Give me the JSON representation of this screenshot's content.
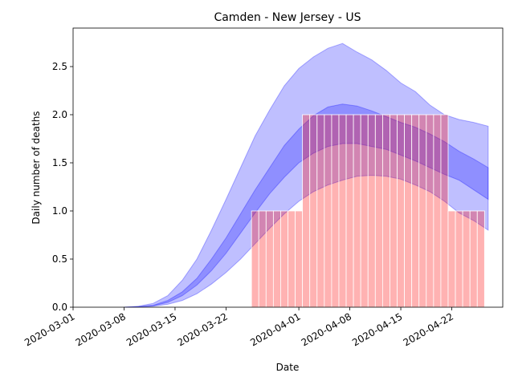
{
  "chart_data": {
    "type": "bar",
    "title": "Camden - New Jersey - US",
    "xlabel": "Date",
    "ylabel": "Daily number of deaths",
    "x": [
      "2020-03-26",
      "2020-03-27",
      "2020-03-28",
      "2020-03-29",
      "2020-03-30",
      "2020-03-31",
      "2020-04-01",
      "2020-04-02",
      "2020-04-03",
      "2020-04-04",
      "2020-04-05",
      "2020-04-06",
      "2020-04-07",
      "2020-04-08",
      "2020-04-09",
      "2020-04-10",
      "2020-04-11",
      "2020-04-12",
      "2020-04-13",
      "2020-04-14",
      "2020-04-15",
      "2020-04-16",
      "2020-04-17",
      "2020-04-18",
      "2020-04-19",
      "2020-04-20",
      "2020-04-21",
      "2020-04-22",
      "2020-04-23",
      "2020-04-24",
      "2020-04-25",
      "2020-04-26"
    ],
    "values": [
      1,
      1,
      1,
      1,
      1,
      1,
      1,
      2,
      2,
      2,
      2,
      2,
      2,
      2,
      2,
      2,
      2,
      2,
      2,
      2,
      2,
      2,
      2,
      2,
      2,
      2,
      2,
      1,
      1,
      1,
      1,
      1
    ],
    "color": "#ff0000",
    "band_x": [
      "2020-03-08",
      "2020-03-10",
      "2020-03-12",
      "2020-03-14",
      "2020-03-16",
      "2020-03-18",
      "2020-03-20",
      "2020-03-22",
      "2020-03-24",
      "2020-03-26",
      "2020-03-28",
      "2020-03-30",
      "2020-04-01",
      "2020-04-03",
      "2020-04-05",
      "2020-04-07",
      "2020-04-09",
      "2020-04-11",
      "2020-04-13",
      "2020-04-15",
      "2020-04-17",
      "2020-04-19",
      "2020-04-21",
      "2020-04-23",
      "2020-04-25",
      "2020-04-27"
    ],
    "bands": [
      {
        "color": "#0000ff",
        "upper": [
          0,
          0.01,
          0.04,
          0.12,
          0.28,
          0.5,
          0.8,
          1.12,
          1.45,
          1.78,
          2.05,
          2.3,
          2.48,
          2.6,
          2.69,
          2.74,
          2.65,
          2.57,
          2.46,
          2.33,
          2.24,
          2.1,
          2.0,
          1.95,
          1.92,
          1.88
        ],
        "lower": [
          0,
          0.002,
          0.01,
          0.03,
          0.07,
          0.14,
          0.24,
          0.36,
          0.5,
          0.66,
          0.82,
          0.97,
          1.1,
          1.2,
          1.27,
          1.32,
          1.36,
          1.37,
          1.36,
          1.33,
          1.27,
          1.2,
          1.1,
          0.98,
          0.9,
          0.8
        ]
      },
      {
        "color": "#0000ff",
        "upper": [
          0,
          0.005,
          0.02,
          0.07,
          0.16,
          0.3,
          0.5,
          0.72,
          0.97,
          1.22,
          1.45,
          1.68,
          1.85,
          1.99,
          2.08,
          2.11,
          2.09,
          2.04,
          1.98,
          1.92,
          1.87,
          1.8,
          1.72,
          1.62,
          1.54,
          1.45
        ],
        "lower": [
          0,
          0.004,
          0.015,
          0.05,
          0.12,
          0.23,
          0.38,
          0.56,
          0.77,
          0.98,
          1.18,
          1.35,
          1.5,
          1.6,
          1.67,
          1.7,
          1.7,
          1.67,
          1.64,
          1.58,
          1.52,
          1.45,
          1.38,
          1.32,
          1.22,
          1.12
        ]
      }
    ],
    "xlim": [
      "2020-03-01",
      "2020-04-29"
    ],
    "xticks": [
      "2020-03-01",
      "2020-03-08",
      "2020-03-15",
      "2020-03-22",
      "2020-04-01",
      "2020-04-08",
      "2020-04-15",
      "2020-04-22"
    ],
    "ylim": [
      0,
      2.9
    ],
    "yticks": [
      {
        "value": 0,
        "label": "0.0"
      },
      0.5,
      {
        "value": 1,
        "label": "1.0"
      },
      1.5,
      {
        "value": 2,
        "label": "2.0"
      },
      2.5
    ]
  }
}
